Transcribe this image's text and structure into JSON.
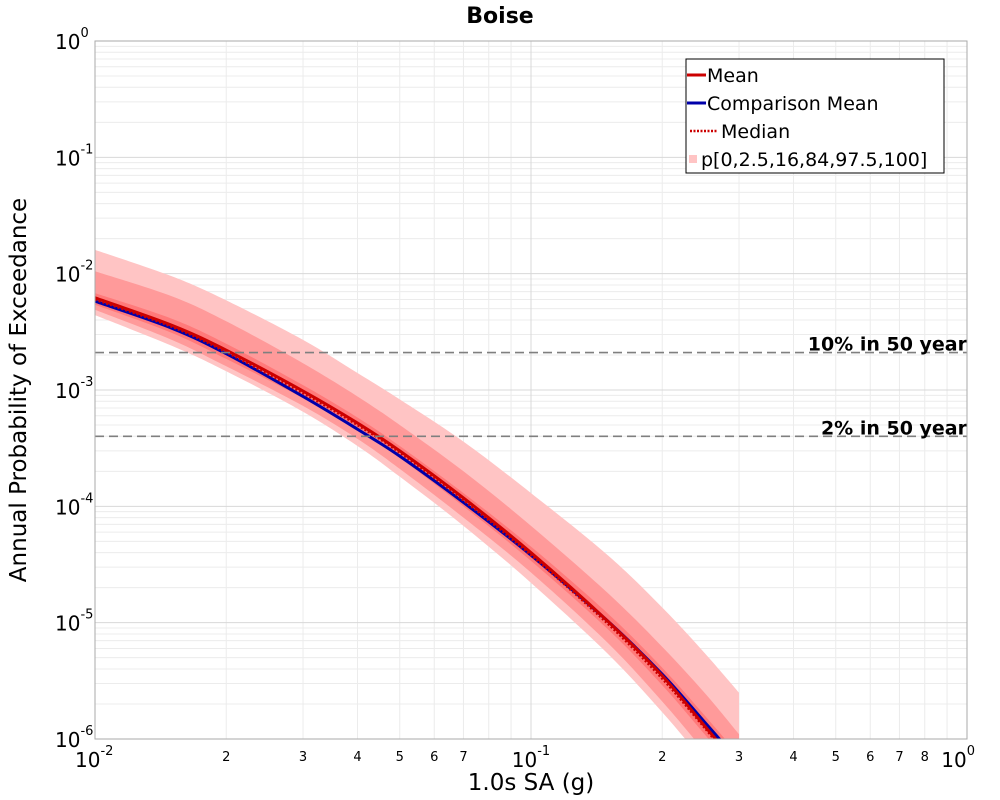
{
  "chart_data": {
    "type": "line",
    "title": "Boise",
    "xlabel": "1.0s SA (g)",
    "ylabel": "Annual Probability of Exceedance",
    "xscale": "log",
    "yscale": "log",
    "xlim": [
      0.01,
      1
    ],
    "ylim": [
      1e-06,
      1
    ],
    "grid": true,
    "legend_position": "top-right",
    "x_major_ticks": [
      {
        "value": 0.01,
        "base": "10",
        "exp": "-2"
      },
      {
        "value": 0.1,
        "base": "10",
        "exp": "-1"
      },
      {
        "value": 1,
        "base": "10",
        "exp": "0"
      }
    ],
    "x_minor_ticks": [
      {
        "value": 0.02,
        "label": "2"
      },
      {
        "value": 0.03,
        "label": "3"
      },
      {
        "value": 0.04,
        "label": "4"
      },
      {
        "value": 0.05,
        "label": "5"
      },
      {
        "value": 0.06,
        "label": "6"
      },
      {
        "value": 0.07,
        "label": "7"
      },
      {
        "value": 0.2,
        "label": "2"
      },
      {
        "value": 0.3,
        "label": "3"
      },
      {
        "value": 0.4,
        "label": "4"
      },
      {
        "value": 0.5,
        "label": "5"
      },
      {
        "value": 0.6,
        "label": "6"
      },
      {
        "value": 0.7,
        "label": "7"
      },
      {
        "value": 0.8,
        "label": "8"
      }
    ],
    "y_major_ticks": [
      {
        "value": 1,
        "base": "10",
        "exp": "0"
      },
      {
        "value": 0.1,
        "base": "10",
        "exp": "-1"
      },
      {
        "value": 0.01,
        "base": "10",
        "exp": "-2"
      },
      {
        "value": 0.001,
        "base": "10",
        "exp": "-3"
      },
      {
        "value": 0.0001,
        "base": "10",
        "exp": "-4"
      },
      {
        "value": 1e-05,
        "base": "10",
        "exp": "-5"
      },
      {
        "value": 1e-06,
        "base": "10",
        "exp": "-6"
      }
    ],
    "x": [
      0.01,
      0.015,
      0.02,
      0.03,
      0.04,
      0.05,
      0.07,
      0.1,
      0.15,
      0.2,
      0.25,
      0.3
    ],
    "bands": [
      {
        "name": "p0-p100",
        "color": "#ffc4c4",
        "lower": [
          0.0044,
          0.0024,
          0.00145,
          0.00065,
          0.00033,
          0.00018,
          6.8e-05,
          2.2e-05,
          5.4e-06,
          1.7e-06,
          6.3e-07,
          2.7e-07
        ],
        "upper": [
          0.016,
          0.0095,
          0.0059,
          0.0027,
          0.0014,
          0.00083,
          0.00036,
          0.00013,
          3.8e-05,
          1.35e-05,
          5.5e-06,
          2.5e-06
        ]
      },
      {
        "name": "p2.5-p97.5",
        "color": "#ff9a9a",
        "lower": [
          0.0049,
          0.0027,
          0.0016,
          0.00073,
          0.00038,
          0.00021,
          8e-05,
          2.7e-05,
          6.7e-06,
          2.1e-06,
          7.8e-07,
          3.4e-07
        ],
        "upper": [
          0.0105,
          0.0064,
          0.0039,
          0.0017,
          0.00088,
          0.0005,
          0.0002,
          6.8e-05,
          1.8e-05,
          6.2e-06,
          2.5e-06,
          1.1e-06
        ]
      },
      {
        "name": "p16-p84",
        "color": "#ff7a7a",
        "lower": [
          0.0054,
          0.0031,
          0.00185,
          0.00085,
          0.00045,
          0.00026,
          0.0001,
          3.4e-05,
          8.8e-06,
          2.9e-06,
          1.1e-06,
          4.9e-07
        ],
        "upper": [
          0.0068,
          0.0041,
          0.0025,
          0.0011,
          0.00058,
          0.00033,
          0.00013,
          4.5e-05,
          1.2e-05,
          4.1e-06,
          1.6e-06,
          7.2e-07
        ]
      }
    ],
    "series": [
      {
        "name": "Mean",
        "color": "#cc0000",
        "style": "solid",
        "values": [
          0.0062,
          0.0036,
          0.0022,
          0.00098,
          0.00052,
          0.0003,
          0.000118,
          4e-05,
          1.03e-05,
          3.5e-06,
          1.3e-06,
          5.8e-07
        ]
      },
      {
        "name": "Comparison Mean",
        "color": "#0000aa",
        "style": "solid",
        "values": [
          0.0058,
          0.0034,
          0.00205,
          0.00088,
          0.00046,
          0.00027,
          0.000108,
          3.8e-05,
          1.03e-05,
          3.6e-06,
          1.4e-06,
          6.4e-07
        ]
      },
      {
        "name": "Median",
        "color": "#cc0000",
        "style": "dotted",
        "values": [
          0.006,
          0.0035,
          0.00212,
          0.00094,
          0.0005,
          0.00029,
          0.000113,
          3.8e-05,
          9.8e-06,
          3.3e-06,
          1.25e-06,
          5.5e-07
        ]
      }
    ],
    "reference_lines": [
      {
        "value": 0.0021,
        "label": "10% in 50 year"
      },
      {
        "value": 0.0004,
        "label": "2% in 50 year"
      }
    ],
    "legend": [
      {
        "label": "Mean",
        "color": "#cc0000",
        "style": "solid"
      },
      {
        "label": "Comparison Mean",
        "color": "#0000aa",
        "style": "solid"
      },
      {
        "label": "Median",
        "color": "#cc0000",
        "style": "dotted"
      },
      {
        "label": "p[0,2.5,16,84,97.5,100]",
        "color": "#ffc4c4",
        "style": "patch"
      }
    ]
  }
}
